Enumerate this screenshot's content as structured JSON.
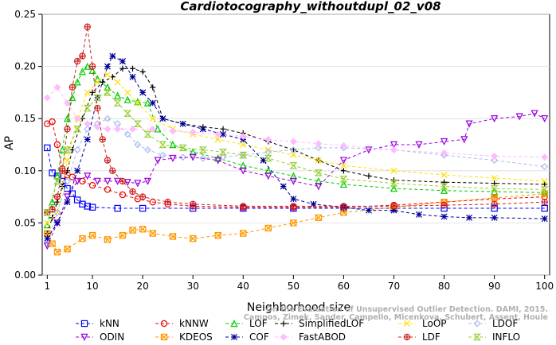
{
  "chart_data": {
    "type": "line",
    "title": "Cardiotocography_withoutdupl_02_v08",
    "xlabel": "Neighborhood size",
    "ylabel": "AP",
    "xlim": [
      1,
      100
    ],
    "ylim": [
      0,
      0.25
    ],
    "x_ticks": [
      1,
      10,
      20,
      30,
      40,
      50,
      60,
      70,
      80,
      90,
      100
    ],
    "y_ticks": [
      "0.00",
      "0.05",
      "0.10",
      "0.15",
      "0.20",
      "0.25"
    ],
    "legend_placement": "bottom",
    "credit": "Campos, Zimek, Sander, Campello, Micenkova, Schubert, Assent, Houle",
    "credit_line1": "On the Evaluation of Unsupervised Outlier Detection. DAMI, 2015.",
    "series": [
      {
        "name": "kNN",
        "color": "#0000ff",
        "marker": "square",
        "points": [
          [
            1,
            0.122
          ],
          [
            2,
            0.098
          ],
          [
            3,
            0.095
          ],
          [
            4,
            0.09
          ],
          [
            5,
            0.083
          ],
          [
            6,
            0.078
          ],
          [
            7,
            0.072
          ],
          [
            8,
            0.068
          ],
          [
            9,
            0.066
          ],
          [
            10,
            0.065
          ],
          [
            15,
            0.064
          ],
          [
            20,
            0.064
          ],
          [
            30,
            0.064
          ],
          [
            40,
            0.064
          ],
          [
            50,
            0.064
          ],
          [
            60,
            0.064
          ],
          [
            70,
            0.064
          ],
          [
            80,
            0.064
          ],
          [
            90,
            0.064
          ],
          [
            100,
            0.064
          ]
        ]
      },
      {
        "name": "kNNW",
        "color": "#ee0000",
        "marker": "circle",
        "points": [
          [
            1,
            0.145
          ],
          [
            2,
            0.147
          ],
          [
            3,
            0.125
          ],
          [
            4,
            0.102
          ],
          [
            5,
            0.096
          ],
          [
            6,
            0.094
          ],
          [
            8,
            0.09
          ],
          [
            10,
            0.086
          ],
          [
            13,
            0.082
          ],
          [
            16,
            0.077
          ],
          [
            19,
            0.073
          ],
          [
            22,
            0.07
          ],
          [
            25,
            0.068
          ],
          [
            30,
            0.066
          ],
          [
            40,
            0.065
          ],
          [
            50,
            0.065
          ],
          [
            60,
            0.065
          ],
          [
            70,
            0.067
          ],
          [
            80,
            0.07
          ],
          [
            90,
            0.073
          ],
          [
            100,
            0.075
          ]
        ]
      },
      {
        "name": "LOF",
        "color": "#00cc00",
        "marker": "triangle-up",
        "points": [
          [
            1,
            0.048
          ],
          [
            2,
            0.07
          ],
          [
            3,
            0.095
          ],
          [
            4,
            0.12
          ],
          [
            5,
            0.15
          ],
          [
            6,
            0.17
          ],
          [
            7,
            0.185
          ],
          [
            8,
            0.195
          ],
          [
            9,
            0.2
          ],
          [
            10,
            0.196
          ],
          [
            11,
            0.188
          ],
          [
            13,
            0.18
          ],
          [
            15,
            0.172
          ],
          [
            17,
            0.168
          ],
          [
            19,
            0.166
          ],
          [
            21,
            0.165
          ],
          [
            23,
            0.14
          ],
          [
            26,
            0.125
          ],
          [
            30,
            0.118
          ],
          [
            35,
            0.112
          ],
          [
            40,
            0.105
          ],
          [
            45,
            0.1
          ],
          [
            50,
            0.095
          ],
          [
            55,
            0.09
          ],
          [
            60,
            0.087
          ],
          [
            70,
            0.083
          ],
          [
            80,
            0.081
          ],
          [
            90,
            0.08
          ],
          [
            100,
            0.079
          ]
        ]
      },
      {
        "name": "SimplifiedLOF",
        "color": "#000000",
        "marker": "plus",
        "points": [
          [
            1,
            0.04
          ],
          [
            2,
            0.055
          ],
          [
            3,
            0.07
          ],
          [
            4,
            0.085
          ],
          [
            5,
            0.1
          ],
          [
            6,
            0.12
          ],
          [
            8,
            0.15
          ],
          [
            10,
            0.175
          ],
          [
            12,
            0.185
          ],
          [
            14,
            0.19
          ],
          [
            16,
            0.198
          ],
          [
            18,
            0.198
          ],
          [
            20,
            0.195
          ],
          [
            22,
            0.18
          ],
          [
            24,
            0.15
          ],
          [
            28,
            0.145
          ],
          [
            32,
            0.142
          ],
          [
            36,
            0.14
          ],
          [
            40,
            0.136
          ],
          [
            45,
            0.128
          ],
          [
            50,
            0.12
          ],
          [
            55,
            0.11
          ],
          [
            60,
            0.1
          ],
          [
            65,
            0.095
          ],
          [
            70,
            0.091
          ],
          [
            80,
            0.089
          ],
          [
            90,
            0.088
          ],
          [
            100,
            0.087
          ]
        ]
      },
      {
        "name": "LoOP",
        "color": "#ffe000",
        "marker": "x",
        "points": [
          [
            1,
            0.05
          ],
          [
            3,
            0.06
          ],
          [
            5,
            0.11
          ],
          [
            7,
            0.15
          ],
          [
            9,
            0.175
          ],
          [
            11,
            0.185
          ],
          [
            13,
            0.192
          ],
          [
            15,
            0.185
          ],
          [
            17,
            0.175
          ],
          [
            19,
            0.165
          ],
          [
            22,
            0.15
          ],
          [
            26,
            0.14
          ],
          [
            30,
            0.135
          ],
          [
            35,
            0.13
          ],
          [
            40,
            0.125
          ],
          [
            45,
            0.12
          ],
          [
            50,
            0.115
          ],
          [
            55,
            0.11
          ],
          [
            60,
            0.105
          ],
          [
            70,
            0.1
          ],
          [
            80,
            0.096
          ],
          [
            90,
            0.093
          ],
          [
            100,
            0.09
          ]
        ]
      },
      {
        "name": "LDOF",
        "color": "#aabbee",
        "marker": "diamond",
        "points": [
          [
            1,
            0.03
          ],
          [
            3,
            0.06
          ],
          [
            5,
            0.09
          ],
          [
            7,
            0.12
          ],
          [
            9,
            0.14
          ],
          [
            11,
            0.145
          ],
          [
            13,
            0.15
          ],
          [
            15,
            0.145
          ],
          [
            17,
            0.135
          ],
          [
            19,
            0.125
          ],
          [
            21,
            0.12
          ],
          [
            24,
            0.115
          ],
          [
            28,
            0.113
          ],
          [
            32,
            0.112
          ],
          [
            36,
            0.113
          ],
          [
            40,
            0.115
          ],
          [
            45,
            0.118
          ],
          [
            50,
            0.12
          ],
          [
            55,
            0.122
          ],
          [
            60,
            0.122
          ],
          [
            70,
            0.12
          ],
          [
            80,
            0.115
          ],
          [
            90,
            0.11
          ],
          [
            100,
            0.104
          ]
        ]
      },
      {
        "name": "ODIN",
        "color": "#9900dd",
        "marker": "triangle-down",
        "points": [
          [
            1,
            0.028
          ],
          [
            3,
            0.05
          ],
          [
            5,
            0.075
          ],
          [
            7,
            0.09
          ],
          [
            9,
            0.095
          ],
          [
            11,
            0.09
          ],
          [
            13,
            0.09
          ],
          [
            15,
            0.09
          ],
          [
            17,
            0.089
          ],
          [
            19,
            0.088
          ],
          [
            21,
            0.09
          ],
          [
            23,
            0.11
          ],
          [
            26,
            0.112
          ],
          [
            30,
            0.113
          ],
          [
            35,
            0.11
          ],
          [
            40,
            0.1
          ],
          [
            45,
            0.095
          ],
          [
            50,
            0.09
          ],
          [
            55,
            0.085
          ],
          [
            60,
            0.11
          ],
          [
            65,
            0.12
          ],
          [
            70,
            0.125
          ],
          [
            75,
            0.125
          ],
          [
            80,
            0.128
          ],
          [
            84,
            0.13
          ],
          [
            85,
            0.145
          ],
          [
            90,
            0.15
          ],
          [
            95,
            0.152
          ],
          [
            98,
            0.155
          ],
          [
            100,
            0.15
          ]
        ]
      },
      {
        "name": "KDEOS",
        "color": "#ff9900",
        "marker": "square-cross",
        "points": [
          [
            1,
            0.04
          ],
          [
            2,
            0.03
          ],
          [
            3,
            0.022
          ],
          [
            5,
            0.025
          ],
          [
            8,
            0.035
          ],
          [
            10,
            0.038
          ],
          [
            13,
            0.034
          ],
          [
            16,
            0.038
          ],
          [
            18,
            0.043
          ],
          [
            20,
            0.044
          ],
          [
            22,
            0.04
          ],
          [
            26,
            0.037
          ],
          [
            30,
            0.035
          ],
          [
            35,
            0.038
          ],
          [
            40,
            0.04
          ],
          [
            45,
            0.045
          ],
          [
            50,
            0.05
          ],
          [
            55,
            0.055
          ],
          [
            60,
            0.06
          ],
          [
            70,
            0.065
          ],
          [
            80,
            0.07
          ],
          [
            90,
            0.074
          ],
          [
            100,
            0.078
          ]
        ]
      },
      {
        "name": "COF",
        "color": "#000099",
        "marker": "star",
        "points": [
          [
            1,
            0.035
          ],
          [
            3,
            0.05
          ],
          [
            5,
            0.07
          ],
          [
            7,
            0.1
          ],
          [
            9,
            0.13
          ],
          [
            11,
            0.17
          ],
          [
            13,
            0.2
          ],
          [
            14,
            0.21
          ],
          [
            16,
            0.205
          ],
          [
            18,
            0.19
          ],
          [
            20,
            0.175
          ],
          [
            22,
            0.165
          ],
          [
            24,
            0.15
          ],
          [
            28,
            0.145
          ],
          [
            32,
            0.14
          ],
          [
            36,
            0.135
          ],
          [
            40,
            0.13
          ],
          [
            44,
            0.11
          ],
          [
            48,
            0.085
          ],
          [
            50,
            0.073
          ],
          [
            54,
            0.068
          ],
          [
            60,
            0.065
          ],
          [
            65,
            0.062
          ],
          [
            70,
            0.062
          ],
          [
            75,
            0.058
          ],
          [
            80,
            0.056
          ],
          [
            85,
            0.055
          ],
          [
            90,
            0.055
          ],
          [
            100,
            0.054
          ]
        ]
      },
      {
        "name": "FastABOD",
        "color": "#ffbbff",
        "marker": "diamond-filled",
        "points": [
          [
            1,
            0.17
          ],
          [
            3,
            0.18
          ],
          [
            5,
            0.165
          ],
          [
            7,
            0.15
          ],
          [
            9,
            0.145
          ],
          [
            11,
            0.142
          ],
          [
            13,
            0.14
          ],
          [
            15,
            0.14
          ],
          [
            18,
            0.14
          ],
          [
            22,
            0.14
          ],
          [
            26,
            0.138
          ],
          [
            30,
            0.137
          ],
          [
            35,
            0.135
          ],
          [
            40,
            0.133
          ],
          [
            45,
            0.13
          ],
          [
            50,
            0.128
          ],
          [
            55,
            0.126
          ],
          [
            60,
            0.124
          ],
          [
            70,
            0.12
          ],
          [
            80,
            0.117
          ],
          [
            90,
            0.114
          ],
          [
            100,
            0.113
          ]
        ]
      },
      {
        "name": "LDF",
        "color": "#cc2222",
        "marker": "circle-plus",
        "points": [
          [
            1,
            0.06
          ],
          [
            2,
            0.063
          ],
          [
            3,
            0.075
          ],
          [
            4,
            0.1
          ],
          [
            5,
            0.14
          ],
          [
            6,
            0.18
          ],
          [
            7,
            0.205
          ],
          [
            8,
            0.21
          ],
          [
            9,
            0.238
          ],
          [
            10,
            0.2
          ],
          [
            11,
            0.16
          ],
          [
            12,
            0.13
          ],
          [
            13,
            0.11
          ],
          [
            14,
            0.1
          ],
          [
            16,
            0.09
          ],
          [
            18,
            0.08
          ],
          [
            20,
            0.075
          ],
          [
            25,
            0.07
          ],
          [
            30,
            0.068
          ],
          [
            40,
            0.066
          ],
          [
            50,
            0.066
          ],
          [
            60,
            0.066
          ],
          [
            70,
            0.066
          ],
          [
            80,
            0.067
          ],
          [
            90,
            0.068
          ],
          [
            100,
            0.07
          ]
        ]
      },
      {
        "name": "INFLO",
        "color": "#99cc33",
        "marker": "hourglass",
        "points": [
          [
            1,
            0.06
          ],
          [
            3,
            0.09
          ],
          [
            5,
            0.12
          ],
          [
            7,
            0.14
          ],
          [
            9,
            0.16
          ],
          [
            11,
            0.17
          ],
          [
            13,
            0.175
          ],
          [
            15,
            0.165
          ],
          [
            17,
            0.155
          ],
          [
            19,
            0.145
          ],
          [
            21,
            0.135
          ],
          [
            24,
            0.125
          ],
          [
            28,
            0.122
          ],
          [
            32,
            0.12
          ],
          [
            36,
            0.118
          ],
          [
            40,
            0.115
          ],
          [
            45,
            0.112
          ],
          [
            50,
            0.105
          ],
          [
            55,
            0.098
          ],
          [
            60,
            0.092
          ],
          [
            70,
            0.088
          ],
          [
            80,
            0.085
          ],
          [
            90,
            0.083
          ],
          [
            100,
            0.082
          ]
        ]
      }
    ]
  }
}
